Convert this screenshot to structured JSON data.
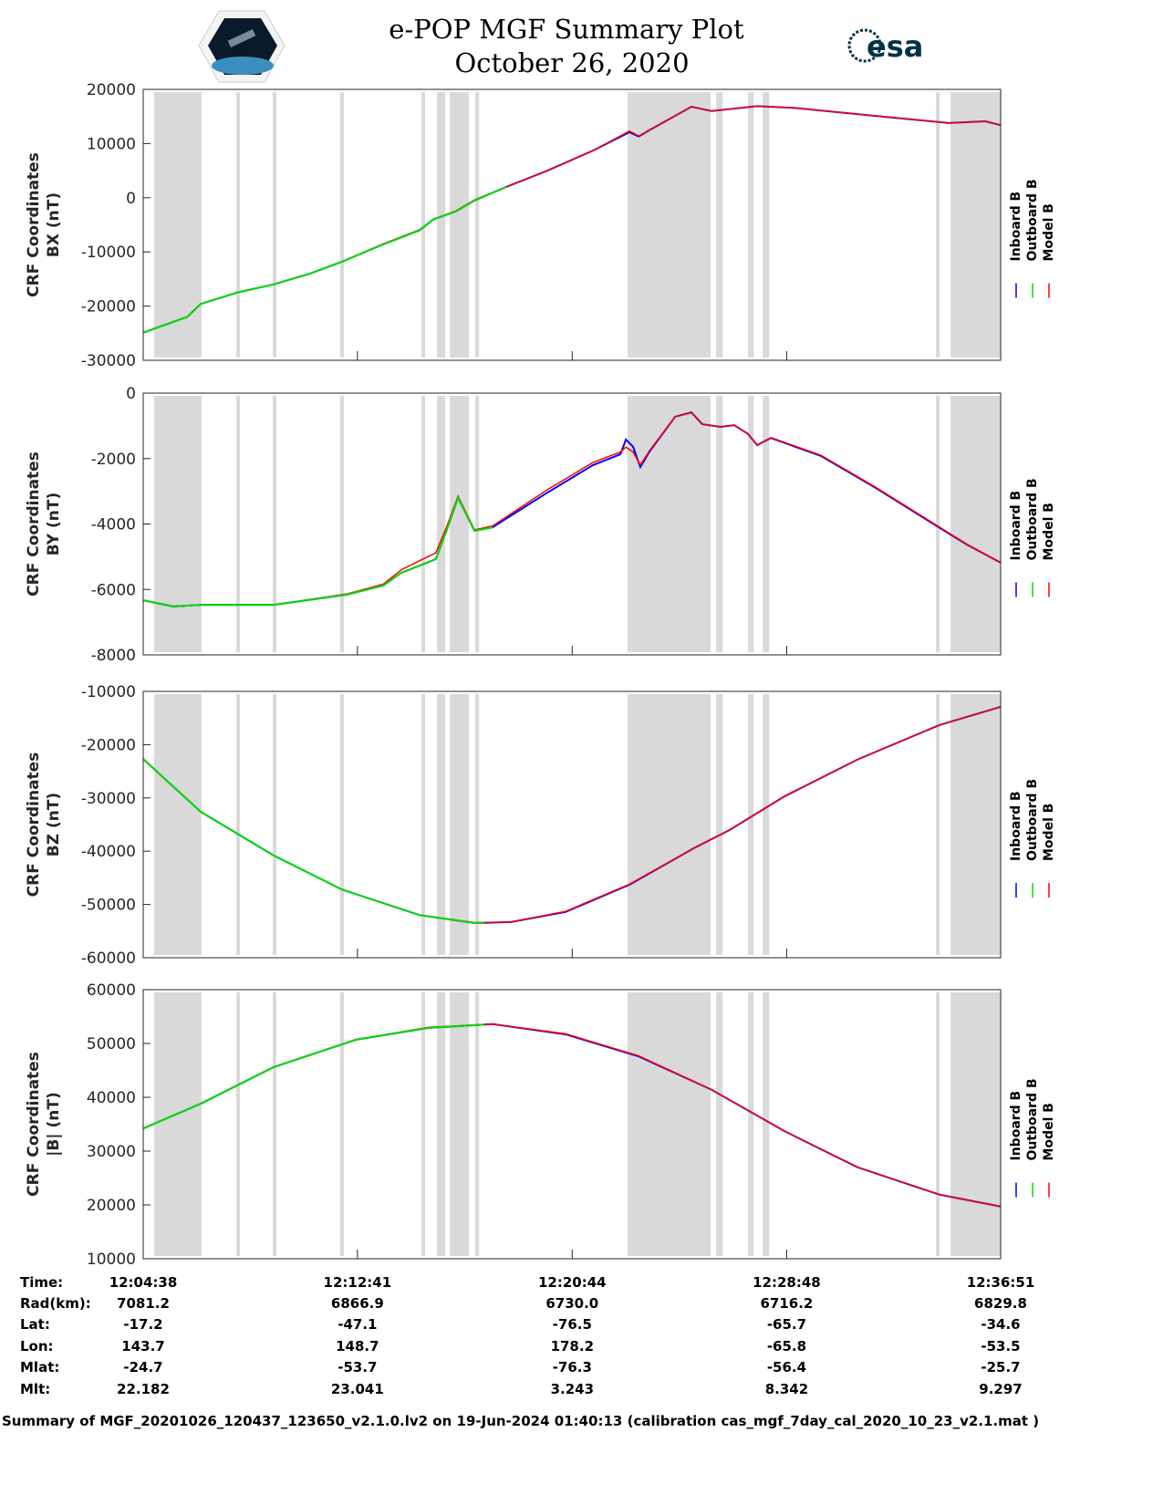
{
  "header": {
    "title": "e-POP MGF Summary Plot",
    "date": "October 26, 2020",
    "logo_left": "CASSIOPE",
    "logo_right": "esa"
  },
  "colors": {
    "inboard": "#0000ff",
    "outboard": "#00dd00",
    "model": "#ff0000",
    "shade": "#d9d9d9"
  },
  "chart_data": {
    "type": "line",
    "x_unit": "minutes since 12:04:37",
    "xlim": [
      0,
      32.22
    ],
    "xticks": [
      0,
      8.05,
      16.12,
      24.18,
      32.22
    ],
    "legend": [
      "Inboard B",
      "Outboard B",
      "Model B"
    ],
    "legend_placement": "right",
    "shaded_intervals": [
      [
        0.41,
        2.19
      ],
      [
        3.5,
        3.63
      ],
      [
        4.87,
        5.0
      ],
      [
        7.4,
        7.54
      ],
      [
        10.46,
        10.59
      ],
      [
        11.04,
        11.35
      ],
      [
        11.52,
        12.24
      ],
      [
        12.48,
        12.62
      ],
      [
        18.2,
        21.32
      ],
      [
        21.53,
        21.77
      ],
      [
        22.73,
        22.94
      ],
      [
        23.28,
        23.52
      ],
      [
        29.79,
        29.93
      ],
      [
        30.34,
        32.22
      ]
    ],
    "panels": [
      {
        "ylabel": [
          "CRF Coordinates",
          "BX (nT)"
        ],
        "ylim": [
          -30000,
          20000
        ],
        "yticks": [
          "20000",
          "10000",
          "0",
          "-10000",
          "-20000",
          "-30000"
        ],
        "ytick_values": [
          20000,
          10000,
          0,
          -10000,
          -20000,
          -30000
        ],
        "outboard_end": 13.64,
        "x": [
          0,
          1.65,
          2.16,
          3.53,
          4.9,
          6.27,
          7.47,
          9.02,
          10.39,
          10.9,
          11.76,
          12.45,
          13.64,
          15.19,
          16.9,
          18.27,
          18.62,
          18.96,
          20.6,
          21.36,
          23.07,
          24.44,
          27.53,
          30.27,
          31.64,
          32.22
        ],
        "inboard": [
          -24900,
          -22000,
          -19600,
          -17500,
          -16000,
          -14000,
          -11800,
          -8600,
          -6000,
          -4000,
          -2500,
          -500,
          2000,
          5000,
          8700,
          12100,
          11300,
          12300,
          16800,
          16000,
          16900,
          16600,
          15100,
          13800,
          14100,
          13400
        ],
        "model": [
          -24900,
          -22000,
          -19600,
          -17500,
          -16000,
          -14000,
          -11800,
          -8500,
          -5900,
          -4000,
          -2400,
          -400,
          2000,
          5000,
          8700,
          12300,
          11400,
          12300,
          16800,
          16000,
          16900,
          16600,
          15100,
          13800,
          14100,
          13400
        ]
      },
      {
        "ylabel": [
          "CRF Coordinates",
          "BY (nT)"
        ],
        "ylim": [
          -8000,
          0
        ],
        "yticks": [
          "0",
          "-2000",
          "-4000",
          "-6000",
          "-8000"
        ],
        "ytick_values": [
          0,
          -2000,
          -4000,
          -6000,
          -8000
        ],
        "outboard_end": 13.13,
        "x": [
          0,
          1.13,
          2.16,
          4.9,
          7.64,
          9.02,
          9.7,
          10.39,
          11.0,
          11.42,
          11.83,
          12.45,
          13.13,
          15.19,
          16.9,
          17.93,
          18.14,
          18.41,
          18.68,
          19.03,
          19.99,
          20.6,
          21.01,
          21.7,
          22.21,
          22.73,
          23.07,
          23.59,
          25.47,
          27.53,
          30.27,
          30.96,
          32.22
        ],
        "inboard": [
          -6330,
          -6520,
          -6470,
          -6470,
          -6160,
          -5880,
          -5490,
          -5270,
          -5070,
          -4150,
          -3200,
          -4210,
          -4100,
          -3040,
          -2200,
          -1870,
          -1420,
          -1640,
          -2260,
          -1780,
          -720,
          -590,
          -950,
          -1030,
          -980,
          -1250,
          -1590,
          -1370,
          -1920,
          -2900,
          -4290,
          -4630,
          -5180
        ],
        "model": [
          -6330,
          -6520,
          -6470,
          -6470,
          -6140,
          -5840,
          -5400,
          -5120,
          -4880,
          -4050,
          -3150,
          -4180,
          -4060,
          -2950,
          -2120,
          -1800,
          -1650,
          -1800,
          -2200,
          -1750,
          -720,
          -600,
          -950,
          -1030,
          -980,
          -1250,
          -1580,
          -1360,
          -1900,
          -2880,
          -4270,
          -4620,
          -5180
        ]
      },
      {
        "ylabel": [
          "CRF Coordinates",
          "BZ (nT)"
        ],
        "ylim": [
          -60000,
          -10000
        ],
        "yticks": [
          "-10000",
          "-20000",
          "-30000",
          "-40000",
          "-50000",
          "-60000"
        ],
        "ytick_values": [
          -10000,
          -20000,
          -30000,
          -40000,
          -50000,
          -60000
        ],
        "outboard_end": 12.8,
        "x": [
          0,
          2.16,
          4.9,
          7.47,
          10.39,
          12.45,
          13.82,
          15.87,
          18.27,
          20.67,
          22.04,
          24.1,
          26.84,
          29.93,
          32.22
        ],
        "inboard": [
          -22700,
          -32600,
          -40800,
          -47200,
          -52000,
          -53500,
          -53300,
          -51400,
          -46300,
          -39500,
          -36000,
          -29700,
          -22800,
          -16300,
          -12900
        ],
        "model": [
          -22700,
          -32600,
          -40800,
          -47200,
          -52000,
          -53400,
          -53300,
          -51300,
          -46200,
          -39500,
          -36000,
          -29700,
          -22800,
          -16300,
          -12900
        ]
      },
      {
        "ylabel": [
          "CRF Coordinates",
          "|B| (nT)"
        ],
        "ylim": [
          10000,
          60000
        ],
        "yticks": [
          "60000",
          "50000",
          "40000",
          "30000",
          "20000",
          "10000"
        ],
        "ytick_values": [
          60000,
          50000,
          40000,
          30000,
          20000,
          10000
        ],
        "outboard_end": 12.8,
        "x": [
          0,
          2.16,
          4.9,
          7.99,
          10.73,
          13.13,
          15.87,
          18.62,
          21.36,
          24.1,
          26.84,
          29.93,
          32.22
        ],
        "inboard": [
          34200,
          38800,
          45600,
          50700,
          52900,
          53600,
          51700,
          47600,
          41400,
          33700,
          27000,
          21900,
          19700
        ],
        "model": [
          34200,
          38800,
          45600,
          50700,
          53000,
          53600,
          51800,
          47700,
          41400,
          33700,
          27000,
          21900,
          19700
        ]
      }
    ]
  },
  "table": {
    "labels": [
      "Time:",
      "Rad(km):",
      "Lat:",
      "Lon:",
      "Mlat:",
      "Mlt:"
    ],
    "columns": [
      [
        "12:04:38",
        "7081.2",
        "-17.2",
        "143.7",
        "-24.7",
        "22.182"
      ],
      [
        "12:12:41",
        "6866.9",
        "-47.1",
        "148.7",
        "-53.7",
        "23.041"
      ],
      [
        "12:20:44",
        "6730.0",
        "-76.5",
        "178.2",
        "-76.3",
        "3.243"
      ],
      [
        "12:28:48",
        "6716.2",
        "-65.7",
        "-65.8",
        "-56.4",
        "8.342"
      ],
      [
        "12:36:51",
        "6829.8",
        "-34.6",
        "-53.5",
        "-25.7",
        "9.297"
      ]
    ]
  },
  "footer": "Summary of MGF_20201026_120437_123650_v2.1.0.lv2 on 19-Jun-2024 01:40:13 (calibration cas_mgf_7day_cal_2020_10_23_v2.1.mat )"
}
